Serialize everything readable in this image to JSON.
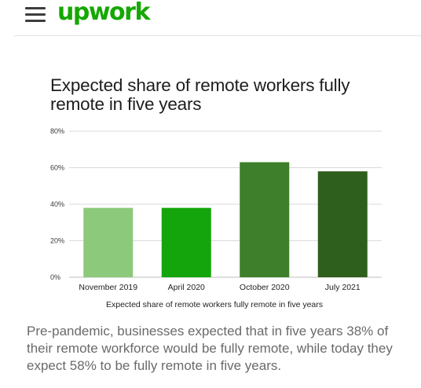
{
  "header": {
    "logo_text": "upwork",
    "menu_icon": "hamburger-menu-icon",
    "brand_color": "#14a800"
  },
  "chart_data": {
    "type": "bar",
    "title": "Expected share of remote workers fully remote in five years",
    "caption": "Expected share of remote workers fully remote in five years",
    "categories": [
      "November 2019",
      "April 2020",
      "October 2020",
      "July 2021"
    ],
    "values": [
      38,
      38,
      63,
      58
    ],
    "colors": [
      "#8cc97a",
      "#13a50b",
      "#3d7f2a",
      "#2f5f1d"
    ],
    "yticks": [
      "0%",
      "20%",
      "40%",
      "60%",
      "80%"
    ],
    "ylim": [
      0,
      80
    ],
    "grid": true,
    "xlabel": "",
    "ylabel": ""
  },
  "summary": "Pre-pandemic, businesses expected that in five years 38% of their remote workforce would be fully remote, while today they expect 58% to be fully remote in five years."
}
